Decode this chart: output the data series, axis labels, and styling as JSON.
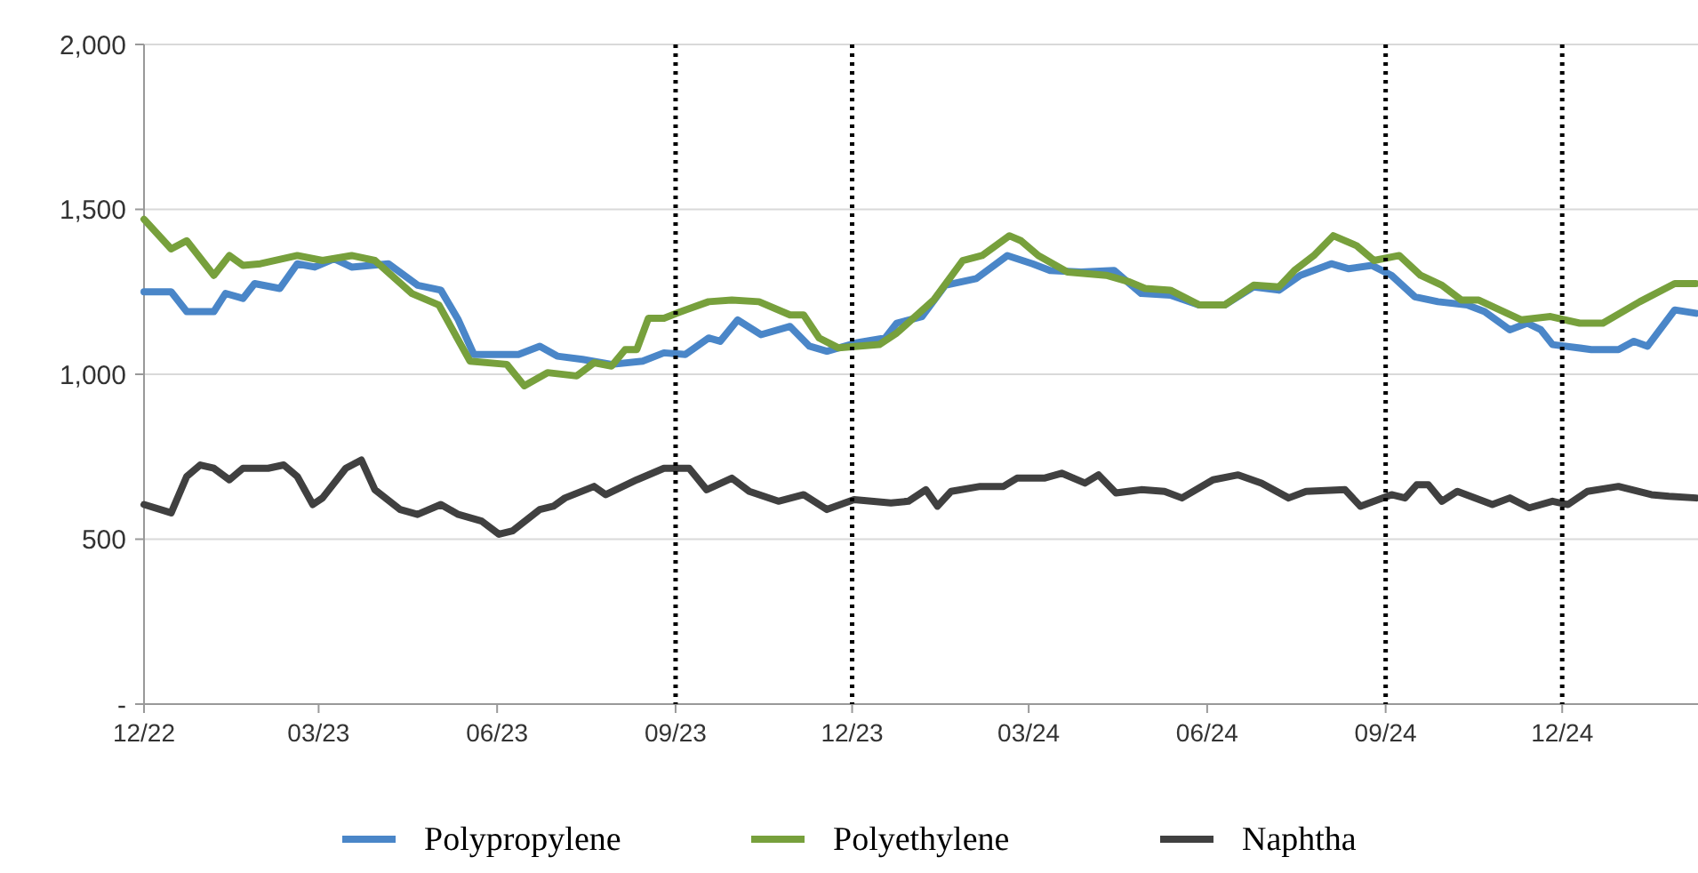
{
  "chart_data": {
    "type": "line",
    "xlim": [
      "2022-12-01",
      "2025-02-09"
    ],
    "ylim": [
      0,
      2000
    ],
    "xticks": [
      {
        "value": "2022-12-01",
        "label": "12/22"
      },
      {
        "value": "2023-03-01",
        "label": "03/23"
      },
      {
        "value": "2023-06-01",
        "label": "06/23"
      },
      {
        "value": "2023-09-01",
        "label": "09/23"
      },
      {
        "value": "2023-12-01",
        "label": "12/23"
      },
      {
        "value": "2024-03-01",
        "label": "03/24"
      },
      {
        "value": "2024-06-01",
        "label": "06/24"
      },
      {
        "value": "2024-09-01",
        "label": "09/24"
      },
      {
        "value": "2024-12-01",
        "label": "12/24"
      }
    ],
    "yticks": [
      {
        "value": 0,
        "label": "-"
      },
      500,
      {
        "value": 1000,
        "label": "1,000"
      },
      {
        "value": 1500,
        "label": "1,500"
      },
      {
        "value": 2000,
        "label": "2,000"
      }
    ],
    "grid": "y",
    "legend": "bottom",
    "marker": "none",
    "line_style": "solid",
    "ref_lines": [
      {
        "axis": "x",
        "value": "2023-09-01",
        "color": "#000000",
        "line_style": "dotted"
      },
      {
        "axis": "x",
        "value": "2023-12-01",
        "color": "#000000",
        "line_style": "dotted"
      },
      {
        "axis": "x",
        "value": "2024-09-01",
        "color": "#000000",
        "line_style": "dotted"
      },
      {
        "axis": "x",
        "value": "2024-12-01",
        "color": "#000000",
        "line_style": "dotted"
      }
    ],
    "series": [
      {
        "name": "Polypropylene",
        "color": "#4a86c8",
        "x": [
          "2022-12-01",
          "2022-12-15",
          "2022-12-23",
          "2023-01-06",
          "2023-01-12",
          "2023-01-21",
          "2023-01-27",
          "2023-02-09",
          "2023-02-18",
          "2023-02-27",
          "2023-03-09",
          "2023-03-18",
          "2023-04-06",
          "2023-04-21",
          "2023-05-03",
          "2023-05-12",
          "2023-05-20",
          "2023-06-12",
          "2023-06-23",
          "2023-07-02",
          "2023-07-15",
          "2023-07-30",
          "2023-08-15",
          "2023-08-26",
          "2023-09-06",
          "2023-09-18",
          "2023-09-24",
          "2023-10-03",
          "2023-10-15",
          "2023-10-30",
          "2023-11-09",
          "2023-11-18",
          "2023-12-03",
          "2023-12-18",
          "2023-12-24",
          "2024-01-06",
          "2024-01-18",
          "2024-02-03",
          "2024-02-19",
          "2024-03-03",
          "2024-03-12",
          "2024-03-28",
          "2024-04-14",
          "2024-04-28",
          "2024-05-13",
          "2024-05-28",
          "2024-06-10",
          "2024-06-25",
          "2024-07-08",
          "2024-07-19",
          "2024-08-04",
          "2024-08-13",
          "2024-08-25",
          "2024-09-04",
          "2024-09-16",
          "2024-09-28",
          "2024-10-13",
          "2024-10-22",
          "2024-11-04",
          "2024-11-13",
          "2024-11-20",
          "2024-11-26",
          "2024-12-16",
          "2024-12-30",
          "2025-01-07",
          "2025-01-14",
          "2025-01-28",
          "2025-02-08"
        ],
        "values": [
          1250,
          1250,
          1190,
          1190,
          1245,
          1230,
          1275,
          1260,
          1335,
          1325,
          1350,
          1325,
          1335,
          1270,
          1255,
          1165,
          1060,
          1060,
          1085,
          1055,
          1045,
          1030,
          1040,
          1065,
          1060,
          1110,
          1100,
          1165,
          1120,
          1145,
          1085,
          1070,
          1095,
          1110,
          1155,
          1175,
          1270,
          1290,
          1360,
          1335,
          1315,
          1310,
          1315,
          1245,
          1240,
          1210,
          1210,
          1265,
          1255,
          1300,
          1335,
          1320,
          1330,
          1300,
          1235,
          1220,
          1210,
          1190,
          1135,
          1155,
          1135,
          1090,
          1075,
          1075,
          1100,
          1085,
          1195,
          1185
        ]
      },
      {
        "name": "Polyethylene",
        "color": "#77a03c",
        "x": [
          "2022-12-01",
          "2022-12-15",
          "2022-12-23",
          "2023-01-06",
          "2023-01-14",
          "2023-01-21",
          "2023-01-30",
          "2023-02-18",
          "2023-03-03",
          "2023-03-18",
          "2023-03-30",
          "2023-04-18",
          "2023-05-02",
          "2023-05-18",
          "2023-06-06",
          "2023-06-15",
          "2023-06-27",
          "2023-07-12",
          "2023-07-21",
          "2023-07-30",
          "2023-08-06",
          "2023-08-12",
          "2023-08-18",
          "2023-08-26",
          "2023-09-06",
          "2023-09-18",
          "2023-09-30",
          "2023-10-14",
          "2023-10-30",
          "2023-11-06",
          "2023-11-14",
          "2023-11-24",
          "2023-12-15",
          "2023-12-24",
          "2024-01-12",
          "2024-01-27",
          "2024-02-06",
          "2024-02-20",
          "2024-02-26",
          "2024-03-06",
          "2024-03-21",
          "2024-04-10",
          "2024-04-22",
          "2024-04-30",
          "2024-05-13",
          "2024-05-28",
          "2024-06-10",
          "2024-06-25",
          "2024-07-08",
          "2024-07-16",
          "2024-07-26",
          "2024-08-05",
          "2024-08-17",
          "2024-08-26",
          "2024-09-08",
          "2024-09-19",
          "2024-09-30",
          "2024-10-10",
          "2024-10-19",
          "2024-11-10",
          "2024-11-25",
          "2024-12-10",
          "2024-12-22",
          "2025-01-10",
          "2025-01-28",
          "2025-02-08"
        ],
        "values": [
          1470,
          1380,
          1405,
          1300,
          1360,
          1330,
          1335,
          1360,
          1345,
          1360,
          1345,
          1245,
          1210,
          1040,
          1030,
          965,
          1005,
          995,
          1035,
          1025,
          1075,
          1075,
          1170,
          1170,
          1195,
          1220,
          1225,
          1220,
          1180,
          1180,
          1110,
          1080,
          1090,
          1125,
          1225,
          1345,
          1360,
          1420,
          1405,
          1360,
          1310,
          1300,
          1280,
          1260,
          1255,
          1210,
          1210,
          1270,
          1265,
          1315,
          1360,
          1420,
          1390,
          1345,
          1360,
          1300,
          1270,
          1225,
          1225,
          1165,
          1175,
          1155,
          1155,
          1220,
          1275,
          1275
        ]
      },
      {
        "name": "Naphtha",
        "color": "#404040",
        "x": [
          "2022-12-01",
          "2022-12-15",
          "2022-12-23",
          "2022-12-30",
          "2023-01-06",
          "2023-01-14",
          "2023-01-21",
          "2023-02-03",
          "2023-02-11",
          "2023-02-18",
          "2023-02-26",
          "2023-03-03",
          "2023-03-15",
          "2023-03-23",
          "2023-03-30",
          "2023-04-12",
          "2023-04-21",
          "2023-05-03",
          "2023-05-12",
          "2023-05-24",
          "2023-06-02",
          "2023-06-09",
          "2023-06-23",
          "2023-06-30",
          "2023-07-06",
          "2023-07-21",
          "2023-07-27",
          "2023-08-12",
          "2023-08-26",
          "2023-09-08",
          "2023-09-17",
          "2023-09-30",
          "2023-10-09",
          "2023-10-24",
          "2023-11-06",
          "2023-11-18",
          "2023-12-02",
          "2023-12-21",
          "2023-12-30",
          "2024-01-08",
          "2024-01-14",
          "2024-01-21",
          "2024-02-05",
          "2024-02-17",
          "2024-02-24",
          "2024-03-09",
          "2024-03-18",
          "2024-03-30",
          "2024-04-06",
          "2024-04-15",
          "2024-04-28",
          "2024-05-10",
          "2024-05-19",
          "2024-06-04",
          "2024-06-17",
          "2024-06-29",
          "2024-07-13",
          "2024-07-22",
          "2024-08-11",
          "2024-08-19",
          "2024-09-04",
          "2024-09-11",
          "2024-09-17",
          "2024-09-23",
          "2024-09-30",
          "2024-10-08",
          "2024-10-26",
          "2024-11-04",
          "2024-11-14",
          "2024-11-26",
          "2024-12-04",
          "2024-12-14",
          "2024-12-30",
          "2025-01-16",
          "2025-01-25",
          "2025-02-08"
        ],
        "values": [
          605,
          580,
          690,
          725,
          715,
          680,
          715,
          715,
          725,
          690,
          605,
          625,
          715,
          740,
          650,
          590,
          575,
          605,
          575,
          555,
          515,
          525,
          590,
          600,
          625,
          660,
          635,
          680,
          715,
          715,
          650,
          685,
          645,
          615,
          635,
          590,
          620,
          610,
          615,
          650,
          600,
          645,
          660,
          660,
          685,
          685,
          700,
          670,
          695,
          640,
          650,
          645,
          625,
          680,
          695,
          670,
          625,
          645,
          650,
          600,
          635,
          625,
          665,
          665,
          615,
          645,
          605,
          625,
          595,
          615,
          605,
          645,
          660,
          635,
          630,
          625
        ]
      }
    ]
  }
}
